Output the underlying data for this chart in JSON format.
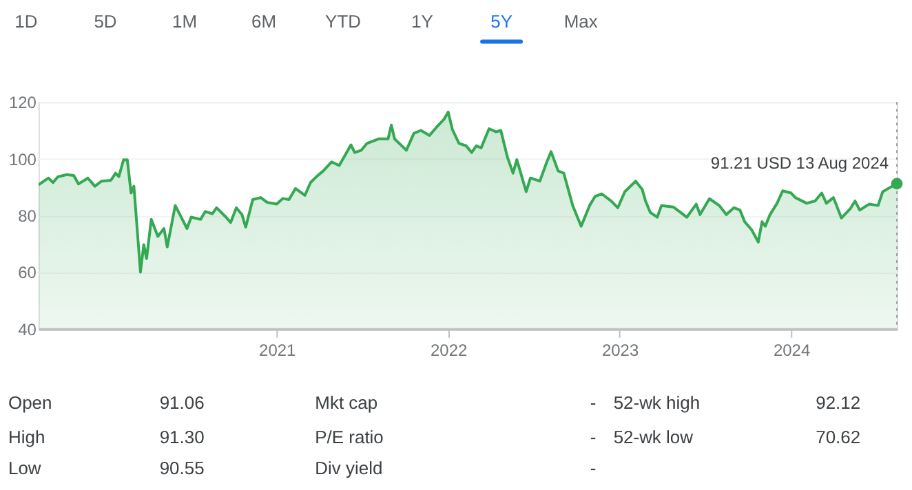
{
  "chart_data": {
    "type": "area",
    "x": [
      "2019-08-13",
      "2019-09-03",
      "2019-09-13",
      "2019-09-23",
      "2019-10-12",
      "2019-10-27",
      "2019-11-06",
      "2019-11-26",
      "2019-12-11",
      "2019-12-25",
      "2020-01-14",
      "2020-01-24",
      "2020-01-31",
      "2020-02-10",
      "2020-02-18",
      "2020-02-26",
      "2020-03-03",
      "2020-03-17",
      "2020-03-24",
      "2020-03-30",
      "2020-04-09",
      "2020-04-23",
      "2020-05-06",
      "2020-05-13",
      "2020-05-30",
      "2020-06-09",
      "2020-06-24",
      "2020-07-03",
      "2020-07-23",
      "2020-08-02",
      "2020-08-17",
      "2020-08-26",
      "2020-09-15",
      "2020-09-25",
      "2020-10-07",
      "2020-10-19",
      "2020-10-27",
      "2020-11-11",
      "2020-11-28",
      "2020-12-12",
      "2021-01-01",
      "2021-01-14",
      "2021-01-27",
      "2021-02-10",
      "2021-03-02",
      "2021-03-14",
      "2021-03-26",
      "2021-04-10",
      "2021-04-28",
      "2021-05-14",
      "2021-06-08",
      "2021-06-16",
      "2021-06-30",
      "2021-07-12",
      "2021-08-06",
      "2021-08-26",
      "2021-09-02",
      "2021-09-09",
      "2021-10-04",
      "2021-10-20",
      "2021-11-04",
      "2021-11-22",
      "2021-12-07",
      "2021-12-23",
      "2022-01-01",
      "2022-01-10",
      "2022-01-24",
      "2022-02-08",
      "2022-02-20",
      "2022-03-02",
      "2022-03-12",
      "2022-03-29",
      "2022-04-13",
      "2022-04-23",
      "2022-05-07",
      "2022-05-19",
      "2022-05-27",
      "2022-06-16",
      "2022-06-25",
      "2022-07-15",
      "2022-07-30",
      "2022-08-08",
      "2022-08-23",
      "2022-09-04",
      "2022-09-23",
      "2022-10-11",
      "2022-10-29",
      "2022-11-10",
      "2022-11-24",
      "2022-12-14",
      "2022-12-28",
      "2023-01-12",
      "2023-02-04",
      "2023-02-18",
      "2023-02-25",
      "2023-03-07",
      "2023-03-22",
      "2023-03-31",
      "2023-04-25",
      "2023-05-24",
      "2023-06-13",
      "2023-06-21",
      "2023-07-11",
      "2023-08-01",
      "2023-08-16",
      "2023-09-01",
      "2023-09-14",
      "2023-09-24",
      "2023-10-09",
      "2023-10-23",
      "2023-10-31",
      "2023-11-07",
      "2023-11-17",
      "2023-12-02",
      "2023-12-14",
      "2024-01-01",
      "2024-01-10",
      "2024-02-03",
      "2024-02-21",
      "2024-03-06",
      "2024-03-16",
      "2024-03-31",
      "2024-04-17",
      "2024-05-06",
      "2024-05-16",
      "2024-05-26",
      "2024-06-15",
      "2024-07-04",
      "2024-07-14",
      "2024-08-03",
      "2024-08-13"
    ],
    "series": [
      {
        "color": "#34a853",
        "values": [
          90.8,
          93.2,
          91.6,
          93.6,
          94.4,
          94.1,
          91.1,
          93.2,
          90.3,
          92.1,
          92.4,
          94.9,
          93.7,
          99.6,
          99.6,
          87.9,
          90.3,
          60.0,
          69.7,
          64.8,
          78.6,
          72.6,
          75.4,
          68.9,
          83.5,
          80.3,
          75.4,
          79.4,
          78.6,
          81.4,
          80.6,
          82.7,
          79.4,
          77.5,
          82.7,
          80.3,
          75.9,
          85.6,
          86.3,
          84.6,
          84.0,
          86.0,
          85.6,
          89.5,
          87.1,
          91.6,
          93.6,
          95.7,
          98.9,
          97.6,
          104.9,
          102.2,
          103.0,
          105.4,
          107.0,
          107.0,
          111.9,
          107.0,
          103.0,
          109.0,
          110.0,
          108.2,
          111.1,
          113.9,
          116.5,
          110.3,
          105.4,
          104.6,
          102.2,
          104.6,
          103.8,
          110.6,
          109.5,
          110.0,
          100.6,
          94.9,
          99.7,
          88.4,
          93.2,
          92.1,
          98.9,
          102.5,
          95.7,
          94.9,
          83.5,
          76.2,
          83.5,
          86.8,
          87.6,
          85.1,
          82.7,
          88.4,
          92.1,
          89.2,
          85.1,
          81.1,
          79.4,
          83.5,
          83.0,
          79.4,
          84.0,
          80.3,
          85.9,
          83.5,
          80.3,
          82.7,
          81.9,
          77.8,
          74.9,
          70.6,
          77.8,
          76.2,
          80.3,
          84.3,
          88.7,
          87.9,
          86.3,
          84.3,
          85.1,
          87.9,
          84.3,
          86.3,
          79.1,
          82.4,
          85.1,
          81.9,
          84.0,
          83.5,
          88.4,
          90.3,
          91.21
        ]
      }
    ],
    "xlim": [
      "2019-08-13",
      "2024-08-13"
    ],
    "xticks": [
      {
        "value": "2021-01-01",
        "label": "2021"
      },
      {
        "value": "2022-01-01",
        "label": "2022"
      },
      {
        "value": "2023-01-01",
        "label": "2023"
      },
      {
        "value": "2024-01-01",
        "label": "2024"
      }
    ],
    "ylim": [
      40,
      120
    ],
    "yticks": [
      40,
      60,
      80,
      100,
      120
    ],
    "grid": "y",
    "ref_lines": [
      {
        "axis": "x",
        "value": "2024-08-13",
        "label": null,
        "color": "#9aa0a6",
        "line_style": "dotted"
      }
    ],
    "annotations": [
      {
        "text": "91.21 USD  13 Aug 2024",
        "x": "2024-08-13",
        "y": 91.21
      },
      "1D",
      "5D",
      "1M",
      "6M",
      "YTD",
      "1Y",
      "5Y",
      "Max",
      "Open",
      "91.06",
      "Mkt cap",
      "-",
      "52-wk high",
      "92.12",
      "High",
      "91.30",
      "P/E ratio",
      "-",
      "52-wk low",
      "70.62",
      "Low",
      "90.55",
      "Div yield",
      "-"
    ]
  }
}
